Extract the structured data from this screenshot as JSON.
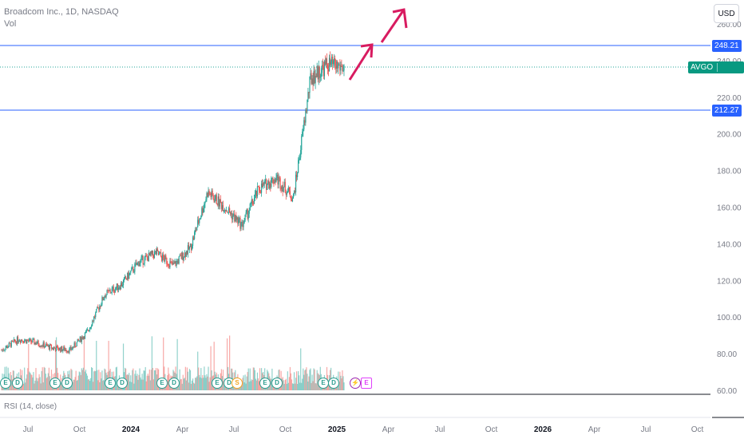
{
  "header": {
    "symbol_line": "Broadcom Inc., 1D, NASDAQ",
    "volume_label": "Vol"
  },
  "toolbar": {
    "currency": "USD"
  },
  "rsi": {
    "label": "RSI (14, close)"
  },
  "price_axis": {
    "ticks": [
      "260.00",
      "240.00",
      "220.00",
      "200.00",
      "180.00",
      "160.00",
      "140.00",
      "120.00",
      "100.00",
      "80.00",
      "60.00"
    ]
  },
  "time_axis": {
    "labels": [
      "Jul",
      "Oct",
      "2024",
      "Apr",
      "Jul",
      "Oct",
      "2025",
      "Apr",
      "Jul",
      "Oct",
      "2026",
      "Apr",
      "Jul",
      "Oct"
    ]
  },
  "levels": {
    "resistance": "248.21",
    "support": "212.27"
  },
  "last_price": {
    "ticker": "AVGO",
    "value": "236.28"
  },
  "colors": {
    "up": "#26a69a",
    "down": "#ef5350",
    "level_line": "#2962ff",
    "arrow": "#d81b60"
  },
  "events": [
    {
      "type": "earnings",
      "glyph": "E"
    },
    {
      "type": "dividend",
      "glyph": "D"
    },
    {
      "type": "earnings",
      "glyph": "E"
    },
    {
      "type": "dividend",
      "glyph": "D"
    },
    {
      "type": "earnings",
      "glyph": "E"
    },
    {
      "type": "dividend",
      "glyph": "D"
    },
    {
      "type": "earnings",
      "glyph": "E"
    },
    {
      "type": "dividend",
      "glyph": "D"
    },
    {
      "type": "earnings",
      "glyph": "E"
    },
    {
      "type": "dividend",
      "glyph": "D"
    },
    {
      "type": "split",
      "glyph": "S"
    },
    {
      "type": "earnings",
      "glyph": "E"
    },
    {
      "type": "dividend",
      "glyph": "D"
    },
    {
      "type": "earnings",
      "glyph": "E"
    },
    {
      "type": "dividend",
      "glyph": "D"
    },
    {
      "type": "flash",
      "glyph": "⚡"
    },
    {
      "type": "upcoming-earnings",
      "glyph": "E"
    }
  ],
  "chart_data": {
    "type": "candlestick",
    "title": "Broadcom Inc., 1D, NASDAQ",
    "y_range": [
      60,
      260
    ],
    "close_path": [
      {
        "t": "2023-06",
        "p": 82
      },
      {
        "t": "2023-07",
        "p": 88
      },
      {
        "t": "2023-08",
        "p": 86
      },
      {
        "t": "2023-09",
        "p": 83
      },
      {
        "t": "2023-10",
        "p": 82
      },
      {
        "t": "2023-11",
        "p": 92
      },
      {
        "t": "2023-12",
        "p": 112
      },
      {
        "t": "2024-01",
        "p": 118
      },
      {
        "t": "2024-02",
        "p": 130
      },
      {
        "t": "2024-03",
        "p": 135
      },
      {
        "t": "2024-04",
        "p": 128
      },
      {
        "t": "2024-05",
        "p": 138
      },
      {
        "t": "2024-06",
        "p": 168
      },
      {
        "t": "2024-07",
        "p": 160
      },
      {
        "t": "2024-08",
        "p": 150
      },
      {
        "t": "2024-09",
        "p": 170
      },
      {
        "t": "2024-10",
        "p": 176
      },
      {
        "t": "2024-11",
        "p": 165
      },
      {
        "t": "2024-12",
        "p": 230
      },
      {
        "t": "2025-01",
        "p": 238
      },
      {
        "t": "2025-02",
        "p": 236
      }
    ],
    "levels": [
      248.21,
      212.27
    ],
    "last": 236.28
  }
}
